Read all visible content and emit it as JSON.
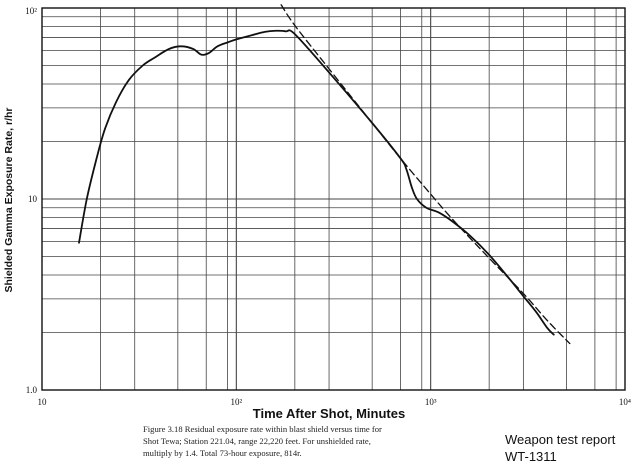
{
  "chart_data": {
    "type": "line",
    "title": "",
    "xlabel": "Time After Shot, Minutes",
    "ylabel": "Shielded Gamma Exposure Rate, r/hr",
    "xscale": "log",
    "yscale": "log",
    "xlim": [
      10,
      10000
    ],
    "ylim": [
      1.0,
      100
    ],
    "x_tick_labels": [
      {
        "value": 10,
        "label": "10"
      },
      {
        "value": 100,
        "label": "10²"
      },
      {
        "value": 1000,
        "label": "10³"
      },
      {
        "value": 10000,
        "label": "10⁴"
      }
    ],
    "y_tick_labels": [
      {
        "value": 1,
        "label": "1.0"
      },
      {
        "value": 10,
        "label": "10"
      },
      {
        "value": 100,
        "label": "10²"
      }
    ],
    "grid": true,
    "series": [
      {
        "name": "",
        "style": "solid",
        "x": [
          15.5,
          17,
          19,
          21,
          24,
          28,
          33,
          38,
          45,
          52,
          60,
          66,
          72,
          80,
          90,
          100,
          120,
          140,
          160,
          180,
          200,
          300,
          500,
          700,
          750,
          800,
          850,
          950,
          1100,
          1300,
          1600,
          2000,
          2500,
          3000,
          3500,
          4000,
          4300
        ],
        "y": [
          5.9,
          10,
          16,
          23,
          32,
          42,
          50,
          55,
          61,
          63,
          61,
          57,
          58,
          63,
          66,
          68.5,
          72,
          75,
          76,
          75.5,
          73,
          46,
          25,
          16.3,
          14.3,
          11.5,
          10,
          9.0,
          8.5,
          7.6,
          6.4,
          5.1,
          3.9,
          3.1,
          2.55,
          2.1,
          1.95
        ]
      },
      {
        "name": "",
        "style": "dashed",
        "x": [
          170,
          200,
          300,
          500,
          700,
          1000,
          1300,
          2000,
          3000,
          4000,
          5200
        ],
        "y": [
          104,
          81,
          48,
          25,
          16.3,
          10.6,
          7.8,
          4.9,
          3.2,
          2.3,
          1.75
        ]
      }
    ]
  },
  "caption": {
    "lines": [
      "Figure 3.18  Residual exposure rate within blast shield versus time for",
      "Shot Tewa; Station 221.04,  range 22,220 feet.  For unshielded rate,",
      "multiply by 1.4.   Total 73-hour exposure,  814r."
    ]
  },
  "source": {
    "line1": "Weapon test report",
    "line2": "WT-1311"
  }
}
